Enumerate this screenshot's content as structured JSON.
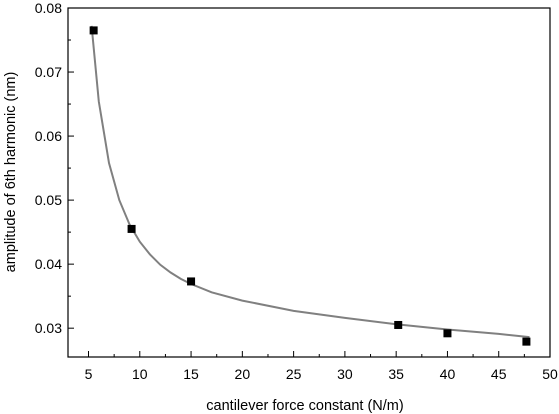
{
  "chart_data": {
    "type": "scatter",
    "title": "",
    "xlabel": "cantilever force constant (N/m)",
    "ylabel": "amplitude of 6th harmonic (nm)",
    "xlim": [
      3,
      50
    ],
    "ylim": [
      0.0255,
      0.08
    ],
    "x_ticks": [
      5,
      10,
      15,
      20,
      25,
      30,
      35,
      40,
      45,
      50
    ],
    "y_ticks": [
      0.03,
      0.04,
      0.05,
      0.06,
      0.07,
      0.08
    ],
    "x_tick_labels": [
      "5",
      "10",
      "15",
      "20",
      "25",
      "30",
      "35",
      "40",
      "45",
      "50"
    ],
    "y_tick_labels": [
      "0.03",
      "0.04",
      "0.05",
      "0.06",
      "0.07",
      "0.08"
    ],
    "grid": false,
    "series": [
      {
        "type": "scatter",
        "marker": "square",
        "color": "#000000",
        "x": [
          5.5,
          9.2,
          15.0,
          35.2,
          40.0,
          47.7
        ],
        "y": [
          0.0765,
          0.0455,
          0.0373,
          0.0305,
          0.0292,
          0.0279
        ]
      },
      {
        "type": "line",
        "color": "#808080",
        "x": [
          5.3,
          6,
          7,
          8,
          9,
          10,
          11,
          12,
          13,
          14,
          15,
          17,
          20,
          25,
          30,
          35,
          40,
          45,
          48
        ],
        "y": [
          0.0772,
          0.0654,
          0.0558,
          0.05,
          0.0462,
          0.0435,
          0.0415,
          0.0399,
          0.0387,
          0.0377,
          0.0369,
          0.0356,
          0.0343,
          0.0327,
          0.0316,
          0.0306,
          0.0298,
          0.0291,
          0.0286
        ]
      }
    ]
  }
}
